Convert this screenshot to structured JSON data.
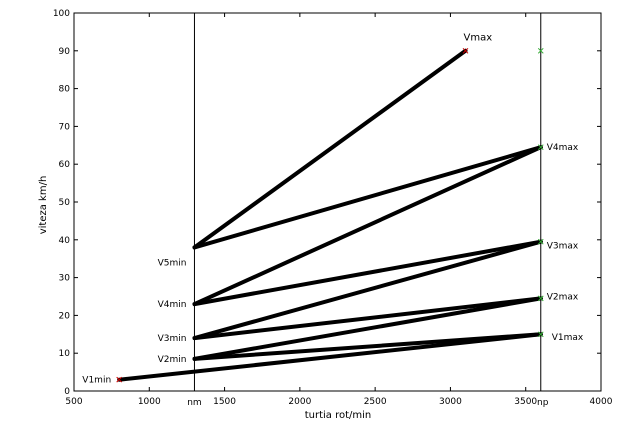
{
  "chart_data": {
    "type": "line",
    "title": "",
    "xlabel": "turtia rot/min",
    "ylabel": "viteza km/h",
    "xlim": [
      500,
      4000
    ],
    "ylim": [
      0,
      100
    ],
    "xticks": [
      500,
      1000,
      1500,
      2000,
      2500,
      3000,
      3500,
      4000
    ],
    "xtick_labels": [
      "500",
      "1000",
      "1500",
      "2000",
      "2500",
      "3000",
      "3500",
      "4000"
    ],
    "yticks": [
      0,
      10,
      20,
      30,
      40,
      50,
      60,
      70,
      80,
      90,
      100
    ],
    "ytick_labels": [
      "0",
      "10",
      "20",
      "30",
      "40",
      "50",
      "60",
      "70",
      "80",
      "90",
      "100"
    ],
    "grid": false,
    "vertical_lines": [
      {
        "x": 1300,
        "label": "nm"
      },
      {
        "x": 3600,
        "label": "np"
      }
    ],
    "series": [
      {
        "points": [
          [
            800,
            3
          ],
          [
            3600,
            15
          ]
        ],
        "color": "#000000"
      },
      {
        "points": [
          [
            1300,
            8.5
          ],
          [
            3600,
            24.5
          ]
        ],
        "color": "#000000"
      },
      {
        "points": [
          [
            1300,
            8.5
          ],
          [
            3600,
            15
          ]
        ],
        "color": "#000000"
      },
      {
        "points": [
          [
            1300,
            14
          ],
          [
            3600,
            24.5
          ]
        ],
        "color": "#000000"
      },
      {
        "points": [
          [
            1300,
            14
          ],
          [
            3600,
            39.5
          ]
        ],
        "color": "#000000"
      },
      {
        "points": [
          [
            1300,
            23
          ],
          [
            3600,
            39.5
          ]
        ],
        "color": "#000000"
      },
      {
        "points": [
          [
            1300,
            23
          ],
          [
            3600,
            64.5
          ]
        ],
        "color": "#000000"
      },
      {
        "points": [
          [
            1300,
            38
          ],
          [
            3600,
            64.5
          ]
        ],
        "color": "#000000"
      },
      {
        "points": [
          [
            1300,
            38
          ],
          [
            3100,
            90
          ]
        ],
        "color": "#000000"
      }
    ],
    "markers": [
      {
        "x": 800,
        "y": 3,
        "color": "#cc0000"
      },
      {
        "x": 3100,
        "y": 90,
        "color": "#cc0000"
      },
      {
        "x": 3600,
        "y": 15,
        "color": "#33aa33"
      },
      {
        "x": 3600,
        "y": 24.5,
        "color": "#33aa33"
      },
      {
        "x": 3600,
        "y": 39.5,
        "color": "#33aa33"
      },
      {
        "x": 3600,
        "y": 64.5,
        "color": "#33aa33"
      },
      {
        "x": 3600,
        "y": 90,
        "color": "#33aa33"
      }
    ],
    "annotations": [
      {
        "text": "V1min",
        "x": 800,
        "y": 3,
        "side": "left"
      },
      {
        "text": "V2min",
        "x": 1300,
        "y": 8.5,
        "side": "left"
      },
      {
        "text": "V3min",
        "x": 1300,
        "y": 14,
        "side": "left"
      },
      {
        "text": "V4min",
        "x": 1300,
        "y": 23,
        "side": "left"
      },
      {
        "text": "V5min",
        "x": 1300,
        "y": 34,
        "side": "left"
      },
      {
        "text": "V1max",
        "x": 3600,
        "y": 14.5,
        "side": "right-far"
      },
      {
        "text": "V2max",
        "x": 3600,
        "y": 25,
        "side": "right"
      },
      {
        "text": "V3max",
        "x": 3600,
        "y": 38.5,
        "side": "right"
      },
      {
        "text": "V4max",
        "x": 3600,
        "y": 64.5,
        "side": "right"
      },
      {
        "text": "Vmax",
        "x": 3100,
        "y": 92.5,
        "side": "above"
      }
    ]
  }
}
